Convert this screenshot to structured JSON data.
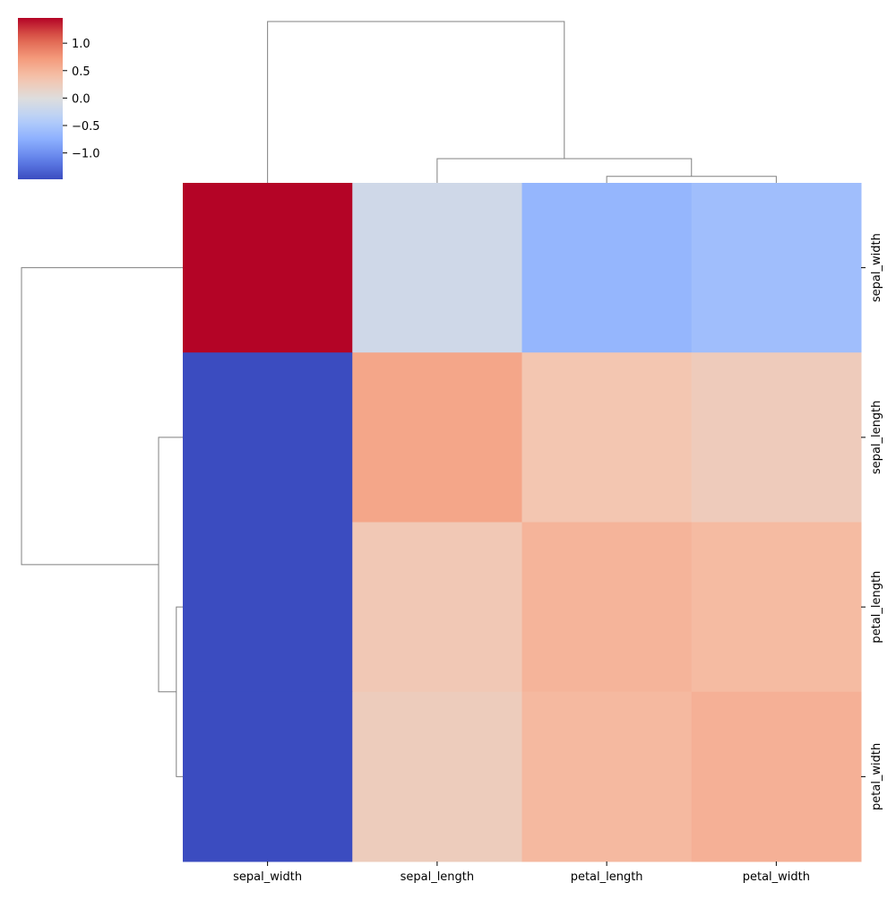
{
  "chart_data": {
    "type": "heatmap",
    "subtype": "clustermap",
    "colormap": "coolwarm",
    "row_labels": [
      "sepal_width",
      "sepal_length",
      "petal_length",
      "petal_width"
    ],
    "col_labels": [
      "sepal_width",
      "sepal_length",
      "petal_length",
      "petal_width"
    ],
    "values": [
      [
        1.46,
        -0.15,
        -0.68,
        -0.58
      ],
      [
        -1.48,
        0.62,
        0.33,
        0.25
      ],
      [
        -1.48,
        0.3,
        0.5,
        0.44
      ],
      [
        -1.48,
        0.24,
        0.45,
        0.53
      ]
    ],
    "colorbar": {
      "range": [
        -1.48,
        1.46
      ],
      "ticks": [
        1.0,
        0.5,
        0.0,
        -0.5,
        -1.0
      ],
      "tick_labels": [
        "1.0",
        "0.5",
        "0.0",
        "−0.5",
        "−1.0"
      ]
    },
    "dendrogram": {
      "leaf_order": [
        "sepal_width",
        "sepal_length",
        "petal_length",
        "petal_width"
      ],
      "merges": [
        {
          "left": "petal_length",
          "right": "petal_width",
          "height": 0.04
        },
        {
          "left": "sepal_length",
          "right": "petal_length+petal_width",
          "height": 0.15
        },
        {
          "left": "sepal_width",
          "right": "sepal_length+petal_length+petal_width",
          "height": 1.0
        }
      ],
      "line_color": "#808080"
    },
    "legend": "top-left colorbar",
    "grid": false
  }
}
